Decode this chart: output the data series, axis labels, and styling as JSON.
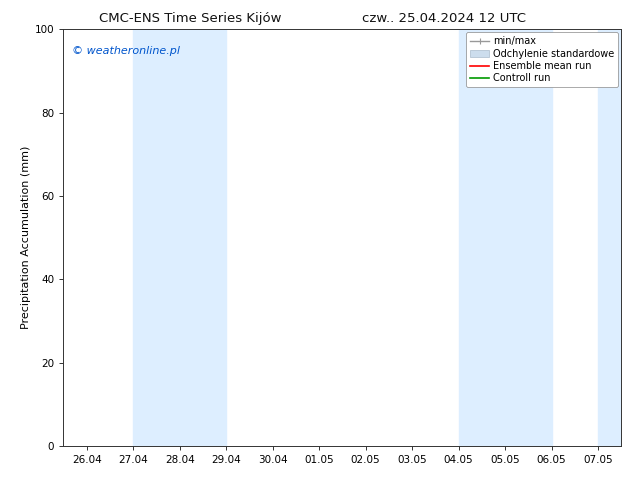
{
  "title_left": "CMC-ENS Time Series Kijów",
  "title_right": "czw.. 25.04.2024 12 UTC",
  "ylabel": "Precipitation Accumulation (mm)",
  "watermark": "© weatheronline.pl",
  "watermark_color": "#0055cc",
  "ylim": [
    0,
    100
  ],
  "xtick_labels": [
    "26.04",
    "27.04",
    "28.04",
    "29.04",
    "30.04",
    "01.05",
    "02.05",
    "03.05",
    "04.05",
    "05.05",
    "06.05",
    "07.05"
  ],
  "ytick_values": [
    0,
    20,
    40,
    60,
    80,
    100
  ],
  "background_color": "#ffffff",
  "plot_bg_color": "#ffffff",
  "shaded_color": "#ddeeff",
  "shaded_bands": [
    {
      "xmin": 1,
      "xmax": 3
    },
    {
      "xmin": 8,
      "xmax": 10
    },
    {
      "xmin": 11,
      "xmax": 11.5
    }
  ],
  "legend_entries": [
    {
      "label": "min/max",
      "color": "#aaaaaa",
      "lw": 1.2
    },
    {
      "label": "Odchylenie standardowe",
      "color": "#ccdded",
      "lw": 5
    },
    {
      "label": "Ensemble mean run",
      "color": "#ff0000",
      "lw": 1.2
    },
    {
      "label": "Controll run",
      "color": "#009900",
      "lw": 1.2
    }
  ],
  "title_fontsize": 9.5,
  "ylabel_fontsize": 8,
  "tick_fontsize": 7.5,
  "watermark_fontsize": 8,
  "legend_fontsize": 7
}
